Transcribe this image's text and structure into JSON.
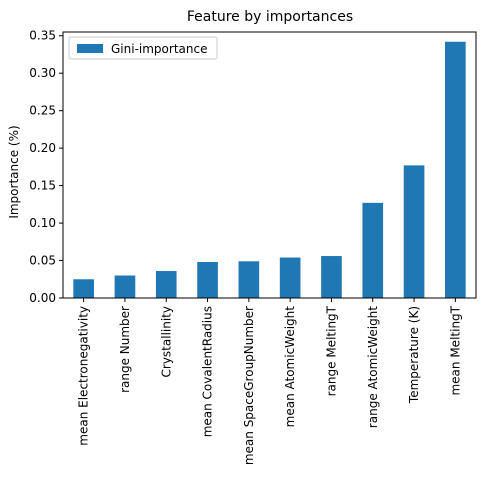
{
  "chart_data": {
    "type": "bar",
    "title": "Feature by importances",
    "xlabel": "",
    "ylabel": "Importance (%)",
    "categories": [
      "mean Electronegativity",
      "range Number",
      "Crystallinity",
      "mean CovalentRadius",
      "mean SpaceGroupNumber",
      "mean AtomicWeight",
      "range MeltingT",
      "range AtomicWeight",
      "Temperature (K)",
      "mean MeltingT"
    ],
    "series": [
      {
        "name": "Gini-importance",
        "color": "#1f77b4",
        "values": [
          0.025,
          0.03,
          0.036,
          0.048,
          0.049,
          0.054,
          0.056,
          0.127,
          0.177,
          0.342
        ]
      }
    ],
    "ylim": [
      0,
      0.355
    ],
    "yticks": [
      0.0,
      0.05,
      0.1,
      0.15,
      0.2,
      0.25,
      0.3,
      0.35
    ],
    "ytick_labels": [
      "0.00",
      "0.05",
      "0.10",
      "0.15",
      "0.20",
      "0.25",
      "0.30",
      "0.35"
    ],
    "grid": false,
    "legend": "top-left"
  }
}
